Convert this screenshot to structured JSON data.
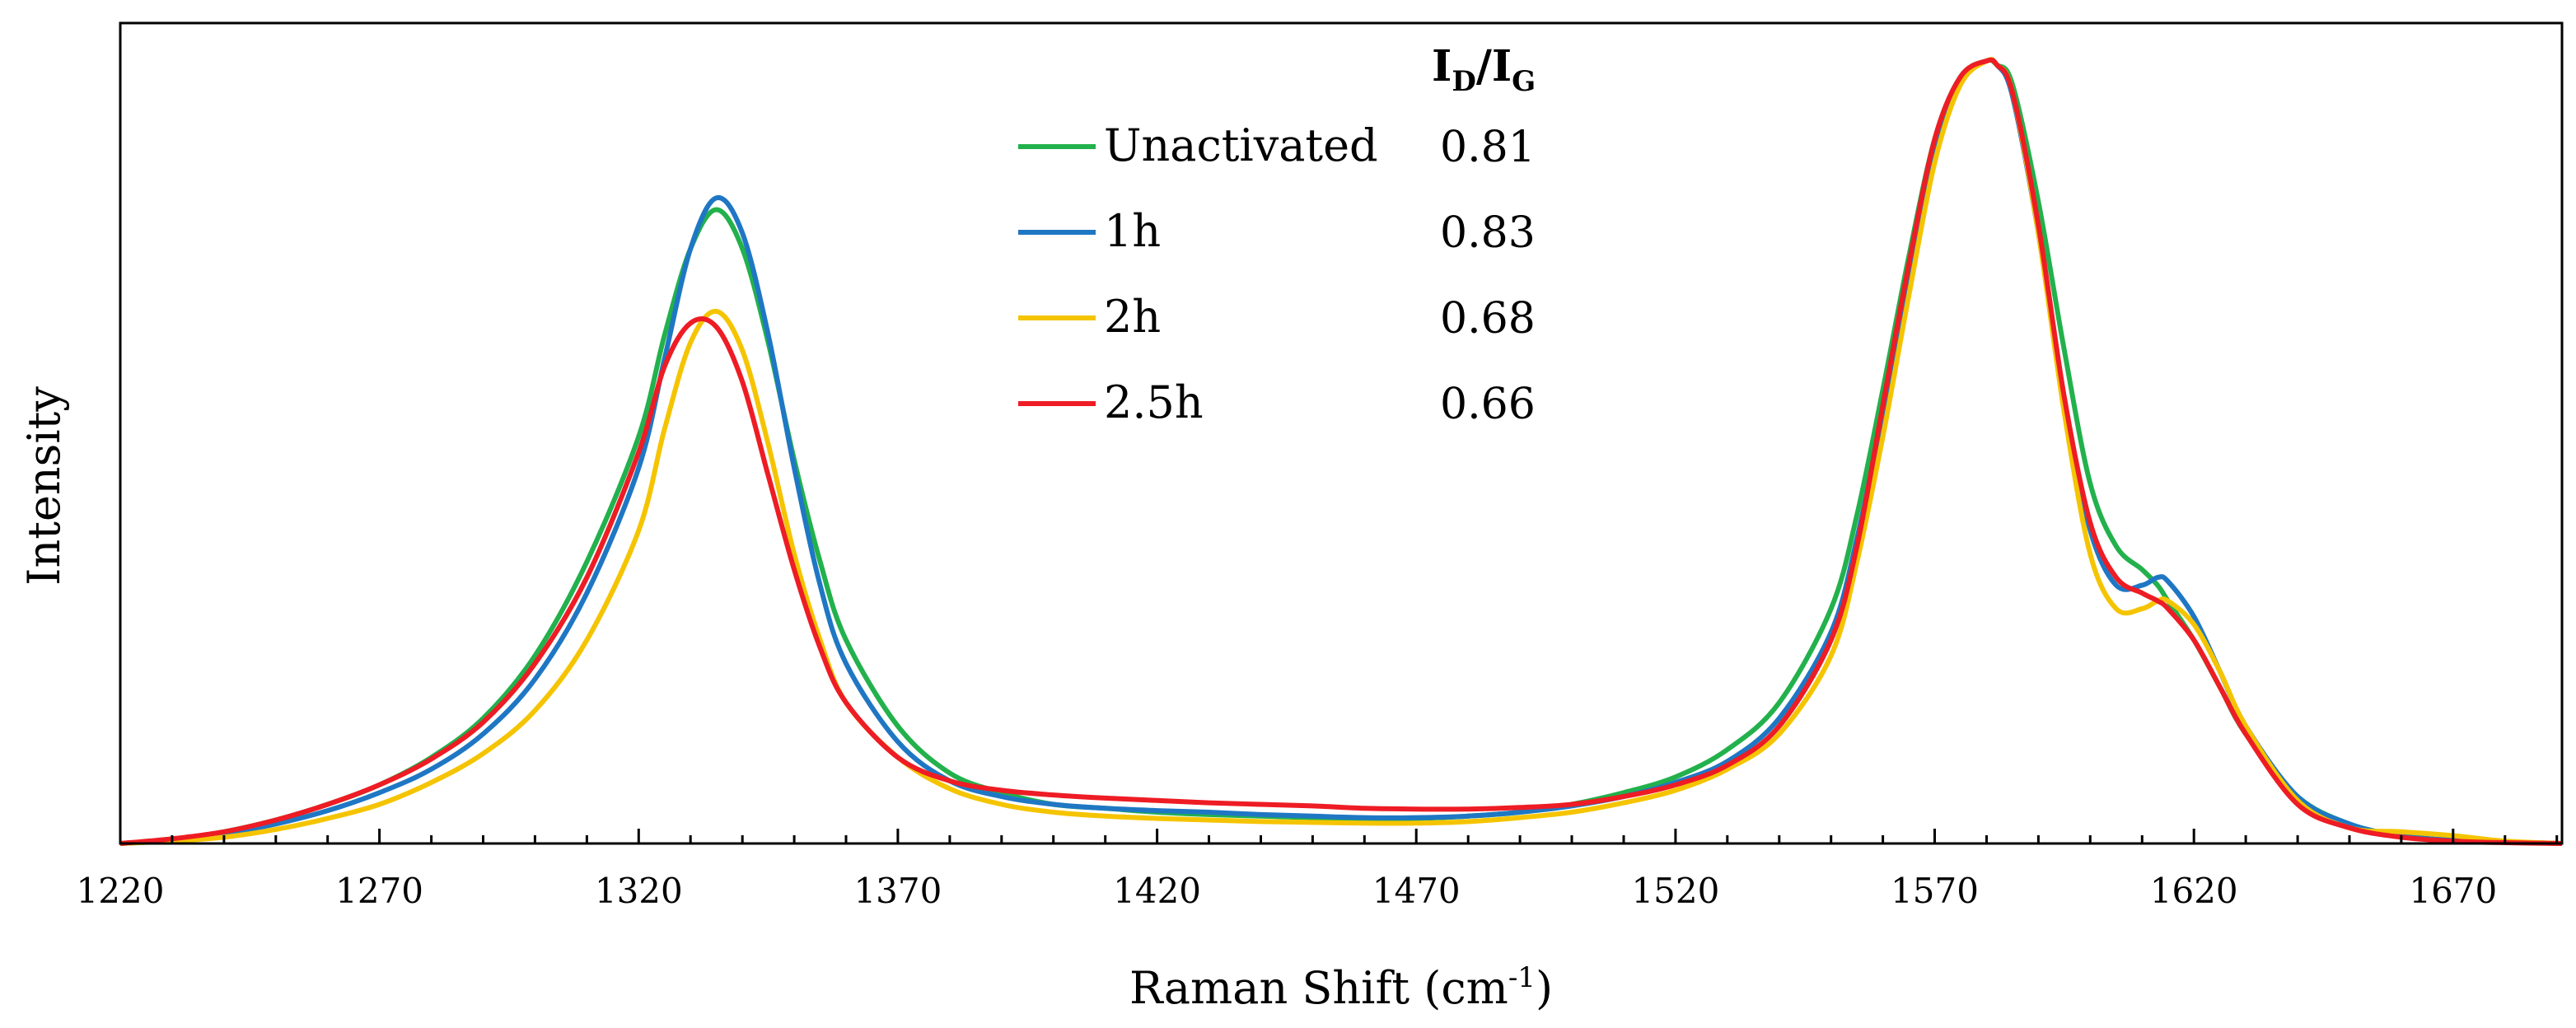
{
  "chart_data": {
    "type": "line",
    "title": "",
    "xlabel": "Raman Shift (cm",
    "xlabel_sup": "-1",
    "xlabel_close": ")",
    "ylabel": "Intensity",
    "xlim": [
      1220,
      1691
    ],
    "ylim": [
      0,
      1.0
    ],
    "xticks": [
      1220,
      1270,
      1320,
      1370,
      1420,
      1470,
      1520,
      1570,
      1620,
      1670
    ],
    "legend_header": {
      "I": "I",
      "D": "D",
      "slash": "/",
      "I2": "I",
      "G": "G"
    },
    "legend_position": "top-center",
    "x": [
      1220,
      1230,
      1240,
      1250,
      1260,
      1270,
      1280,
      1290,
      1300,
      1310,
      1320,
      1325,
      1330,
      1335,
      1340,
      1345,
      1350,
      1355,
      1360,
      1370,
      1380,
      1390,
      1400,
      1410,
      1420,
      1430,
      1440,
      1450,
      1460,
      1470,
      1480,
      1490,
      1500,
      1510,
      1520,
      1530,
      1540,
      1550,
      1555,
      1560,
      1565,
      1570,
      1575,
      1580,
      1582,
      1585,
      1590,
      1595,
      1600,
      1605,
      1610,
      1613,
      1615,
      1620,
      1625,
      1630,
      1640,
      1650,
      1660,
      1670,
      1680,
      1691
    ],
    "series": [
      {
        "name": "Unactivated",
        "id_ig": "0.81",
        "color": "#22b14c",
        "values": [
          0.0,
          0.005,
          0.015,
          0.03,
          0.05,
          0.075,
          0.11,
          0.16,
          0.24,
          0.36,
          0.52,
          0.65,
          0.76,
          0.81,
          0.76,
          0.64,
          0.49,
          0.36,
          0.26,
          0.15,
          0.09,
          0.065,
          0.05,
          0.045,
          0.04,
          0.037,
          0.035,
          0.033,
          0.032,
          0.032,
          0.035,
          0.04,
          0.05,
          0.065,
          0.085,
          0.12,
          0.18,
          0.3,
          0.42,
          0.58,
          0.75,
          0.9,
          0.98,
          1.0,
          0.995,
          0.97,
          0.82,
          0.63,
          0.46,
          0.38,
          0.35,
          0.33,
          0.31,
          0.26,
          0.2,
          0.14,
          0.06,
          0.025,
          0.01,
          0.004,
          0.002,
          0.0
        ]
      },
      {
        "name": "1h",
        "id_ig": "0.83",
        "color": "#1f77c4",
        "values": [
          0.0,
          0.004,
          0.012,
          0.025,
          0.042,
          0.065,
          0.095,
          0.14,
          0.21,
          0.32,
          0.48,
          0.62,
          0.76,
          0.825,
          0.78,
          0.65,
          0.48,
          0.33,
          0.23,
          0.13,
          0.08,
          0.06,
          0.05,
          0.045,
          0.042,
          0.04,
          0.037,
          0.035,
          0.033,
          0.033,
          0.035,
          0.04,
          0.048,
          0.06,
          0.078,
          0.105,
          0.16,
          0.27,
          0.39,
          0.55,
          0.73,
          0.89,
          0.975,
          1.0,
          0.995,
          0.955,
          0.78,
          0.56,
          0.4,
          0.33,
          0.33,
          0.34,
          0.335,
          0.29,
          0.22,
          0.15,
          0.06,
          0.025,
          0.01,
          0.004,
          0.002,
          0.0
        ]
      },
      {
        "name": "2h",
        "id_ig": "0.68",
        "color": "#f5c400",
        "values": [
          0.0,
          0.003,
          0.008,
          0.018,
          0.032,
          0.05,
          0.078,
          0.115,
          0.17,
          0.26,
          0.4,
          0.53,
          0.64,
          0.68,
          0.63,
          0.51,
          0.37,
          0.26,
          0.18,
          0.11,
          0.07,
          0.05,
          0.04,
          0.035,
          0.032,
          0.03,
          0.028,
          0.027,
          0.026,
          0.026,
          0.028,
          0.033,
          0.04,
          0.052,
          0.068,
          0.095,
          0.14,
          0.24,
          0.36,
          0.52,
          0.7,
          0.87,
          0.97,
          1.0,
          0.995,
          0.96,
          0.78,
          0.55,
          0.37,
          0.3,
          0.3,
          0.31,
          0.31,
          0.28,
          0.22,
          0.15,
          0.055,
          0.02,
          0.015,
          0.01,
          0.003,
          0.0
        ]
      },
      {
        "name": "2.5h",
        "id_ig": "0.66",
        "color": "#ee1c24",
        "values": [
          0.0,
          0.006,
          0.015,
          0.03,
          0.05,
          0.075,
          0.108,
          0.155,
          0.23,
          0.34,
          0.5,
          0.61,
          0.665,
          0.66,
          0.59,
          0.47,
          0.35,
          0.25,
          0.18,
          0.11,
          0.08,
          0.068,
          0.062,
          0.058,
          0.055,
          0.052,
          0.05,
          0.048,
          0.045,
          0.044,
          0.044,
          0.046,
          0.05,
          0.06,
          0.075,
          0.1,
          0.15,
          0.26,
          0.38,
          0.56,
          0.74,
          0.9,
          0.98,
          1.0,
          0.995,
          0.96,
          0.79,
          0.57,
          0.41,
          0.34,
          0.32,
          0.31,
          0.3,
          0.26,
          0.2,
          0.14,
          0.05,
          0.02,
          0.008,
          0.003,
          0.001,
          0.0
        ]
      }
    ]
  }
}
